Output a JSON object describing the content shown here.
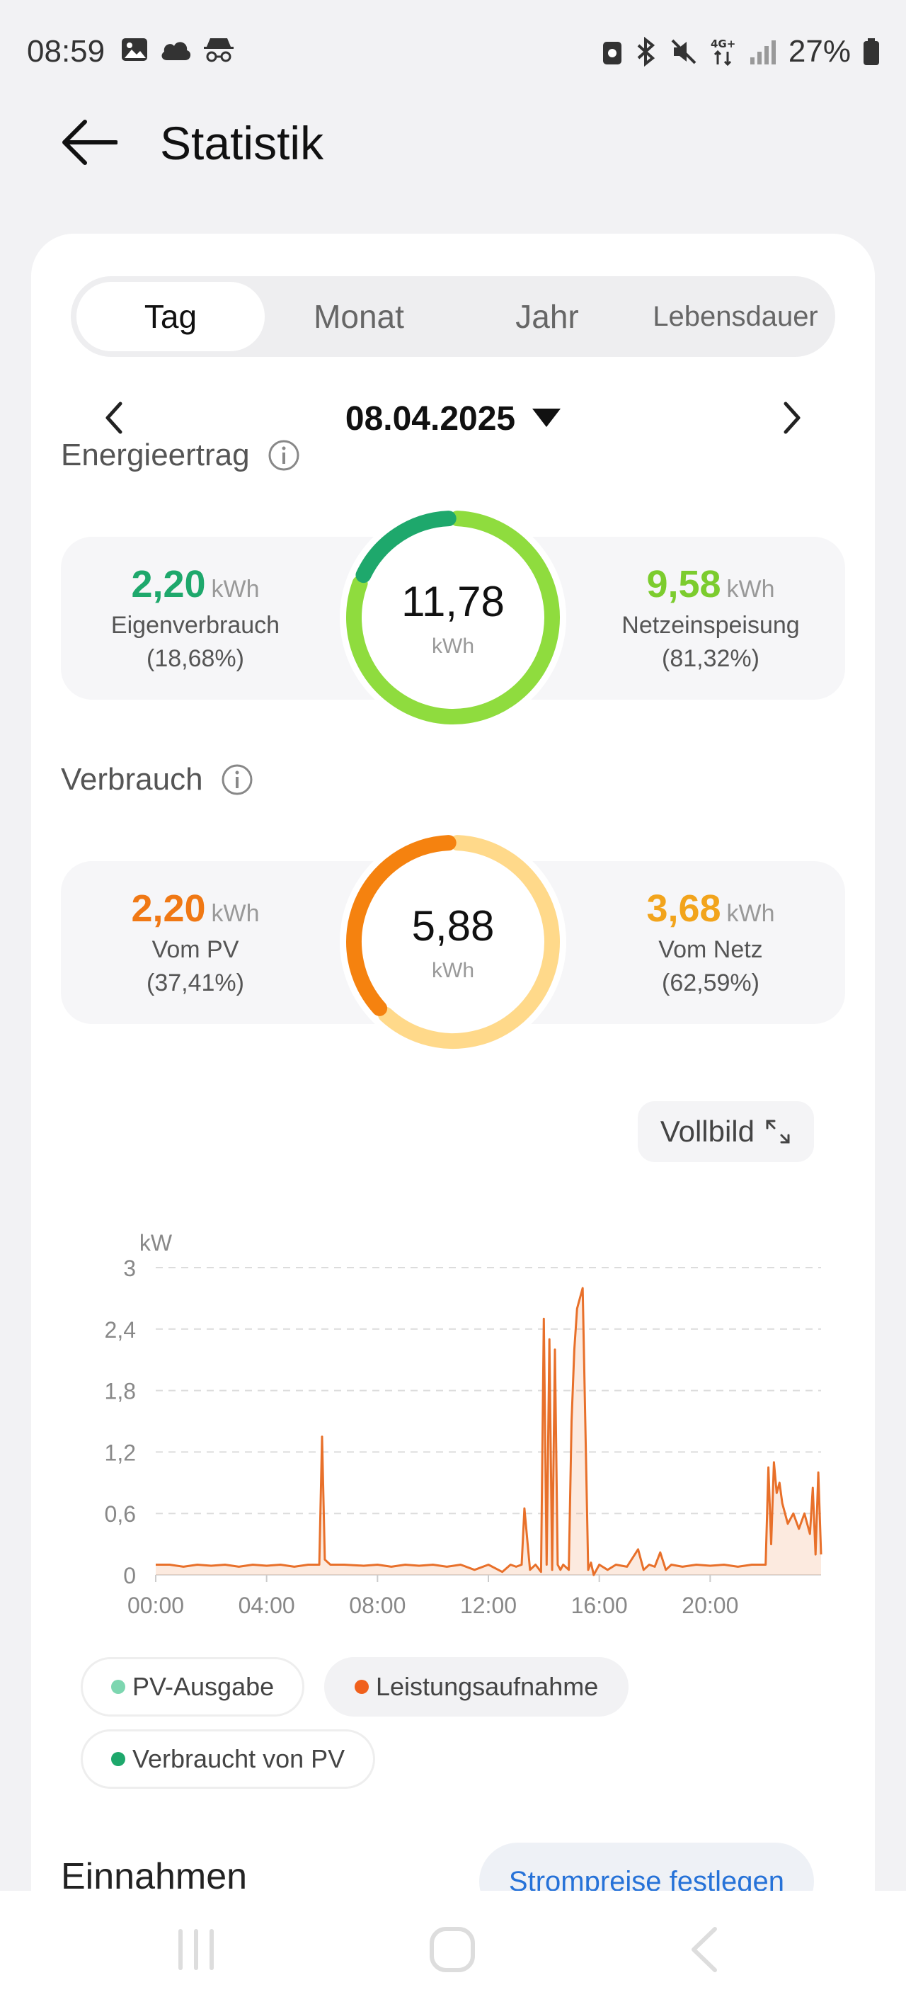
{
  "status_bar": {
    "time": "08:59",
    "battery_text": "27%",
    "left_icons": [
      "gallery-icon",
      "cloud-icon",
      "incognito-icon"
    ],
    "right_icons": [
      "nfc-icon",
      "bluetooth-icon",
      "mute-icon",
      "4g-icon",
      "signal-icon",
      "battery-icon"
    ]
  },
  "header": {
    "title": "Statistik"
  },
  "tabs": [
    {
      "label": "Tag",
      "active": true
    },
    {
      "label": "Monat",
      "active": false
    },
    {
      "label": "Jahr",
      "active": false
    },
    {
      "label": "Lebensdauer",
      "active": false
    }
  ],
  "date": "08.04.2025",
  "energieertrag": {
    "title": "Energieertrag",
    "total": "11,78",
    "unit": "kWh",
    "left": {
      "value": "2,20",
      "unit": "kWh",
      "label": "Eigenverbrauch",
      "pct": "(18,68%)"
    },
    "right": {
      "value": "9,58",
      "unit": "kWh",
      "label": "Netzeinspeisung",
      "pct": "(81,32%)"
    },
    "share_left": 0.1868,
    "colors": {
      "left": "#1ea86c",
      "right": "#8fdc3e"
    }
  },
  "verbrauch": {
    "title": "Verbrauch",
    "total": "5,88",
    "unit": "kWh",
    "left": {
      "value": "2,20",
      "unit": "kWh",
      "label": "Vom PV",
      "pct": "(37,41%)"
    },
    "right": {
      "value": "3,68",
      "unit": "kWh",
      "label": "Vom Netz",
      "pct": "(62,59%)"
    },
    "share_left": 0.3741,
    "colors": {
      "left": "#f5820f",
      "right": "#ffd98a"
    }
  },
  "fullscreen_label": "Vollbild",
  "chart_data": {
    "type": "area",
    "ylabel": "kW",
    "ylim": [
      0,
      3
    ],
    "yticks": [
      "0",
      "0,6",
      "1,2",
      "1,8",
      "2,4",
      "3"
    ],
    "xticks": [
      "00:00",
      "04:00",
      "08:00",
      "12:00",
      "16:00",
      "20:00"
    ],
    "x_range_hours": [
      0,
      24
    ],
    "grid": true,
    "series": [
      {
        "name": "Leistungsaufnahme",
        "color": "#e8702a",
        "x": [
          0,
          0.5,
          1,
          1.5,
          2,
          2.5,
          3,
          3.5,
          4,
          4.5,
          5,
          5.5,
          5.9,
          6.0,
          6.1,
          6.3,
          6.8,
          7.5,
          8,
          8.5,
          9,
          9.5,
          10,
          10.5,
          11,
          11.5,
          12,
          12.5,
          12.8,
          13,
          13.2,
          13.3,
          13.5,
          13.7,
          13.9,
          14.0,
          14.1,
          14.2,
          14.3,
          14.4,
          14.5,
          14.6,
          14.7,
          14.9,
          15.0,
          15.1,
          15.2,
          15.4,
          15.6,
          15.7,
          15.8,
          16.0,
          16.3,
          16.6,
          17,
          17.4,
          17.6,
          17.8,
          18.0,
          18.2,
          18.4,
          18.6,
          19,
          19.5,
          20,
          20.5,
          21,
          21.5,
          22,
          22.1,
          22.2,
          22.3,
          22.4,
          22.5,
          22.6,
          22.8,
          23.0,
          23.2,
          23.4,
          23.6,
          23.7,
          23.8,
          23.9,
          24
        ],
        "values": [
          0.1,
          0.1,
          0.08,
          0.1,
          0.09,
          0.1,
          0.08,
          0.1,
          0.09,
          0.1,
          0.08,
          0.1,
          0.1,
          1.35,
          0.15,
          0.1,
          0.1,
          0.09,
          0.1,
          0.08,
          0.1,
          0.09,
          0.1,
          0.08,
          0.1,
          0.05,
          0.1,
          0.03,
          0.1,
          0.08,
          0.1,
          0.65,
          0.05,
          0.1,
          0.03,
          2.5,
          0.1,
          2.3,
          0.05,
          2.2,
          0.1,
          0.05,
          0.1,
          0.05,
          1.5,
          2.2,
          2.6,
          2.8,
          0.05,
          0.12,
          0.0,
          0.1,
          0.05,
          0.1,
          0.08,
          0.25,
          0.05,
          0.1,
          0.08,
          0.22,
          0.05,
          0.1,
          0.08,
          0.1,
          0.09,
          0.1,
          0.08,
          0.1,
          0.1,
          1.05,
          0.3,
          1.1,
          0.8,
          0.9,
          0.7,
          0.5,
          0.6,
          0.45,
          0.6,
          0.4,
          0.85,
          0.2,
          1.0,
          0.2
        ]
      }
    ],
    "legend": [
      {
        "name": "PV-Ausgabe",
        "color": "#7dd6b0",
        "selected": false
      },
      {
        "name": "Leistungsaufnahme",
        "color": "#f0601c",
        "selected": true
      },
      {
        "name": "Verbraucht von PV",
        "color": "#1ea86c",
        "selected": false
      }
    ]
  },
  "einnahmen": {
    "title": "Einnahmen",
    "button_label": "Strompreise festlegen"
  }
}
